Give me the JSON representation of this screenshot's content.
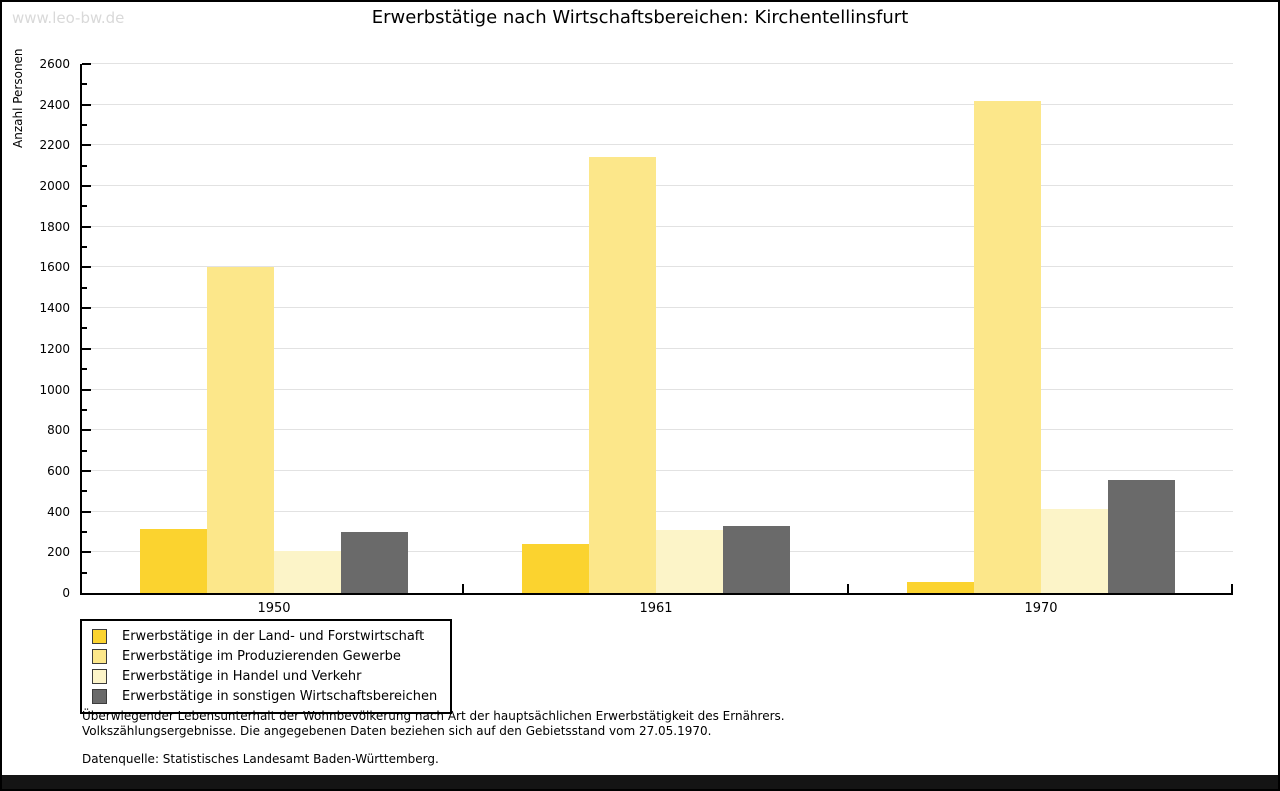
{
  "watermark": "www.leo-bw.de",
  "chart_data": {
    "type": "bar",
    "title": "Erwerbstätige nach Wirtschaftsbereichen: Kirchentellinsfurt",
    "ylabel": "Anzahl Personen",
    "xlabel": "",
    "categories": [
      "1950",
      "1961",
      "1970"
    ],
    "series": [
      {
        "name": "Erwerbstätige in der Land- und Forstwirtschaft",
        "color": "#fbd32f",
        "values": [
          315,
          240,
          55
        ]
      },
      {
        "name": "Erwerbstätige im Produzierenden Gewerbe",
        "color": "#fce78a",
        "values": [
          1600,
          2145,
          2420
        ]
      },
      {
        "name": "Erwerbstätige in Handel und Verkehr",
        "color": "#fcf4c8",
        "values": [
          205,
          310,
          415
        ]
      },
      {
        "name": "Erwerbstätige in sonstigen Wirtschaftsbereichen",
        "color": "#6a6a6a",
        "values": [
          300,
          330,
          555
        ]
      }
    ],
    "ylim": [
      0,
      2600
    ],
    "ytick_step": 200,
    "ytick_minor_step": 100,
    "grid": true,
    "legend_position": "bottom-left",
    "colors": {
      "gridline": "#e2e2e2",
      "axis": "#000000",
      "watermark": "#d9d9d9"
    }
  },
  "footnotes": [
    "Überwiegender Lebensunterhalt der Wohnbevölkerung nach Art der hauptsächlichen Erwerbstätigkeit des Ernährers.",
    "Volkszählungsergebnisse. Die angegebenen Daten beziehen sich auf den Gebietsstand vom 27.05.1970."
  ],
  "source": "Datenquelle: Statistisches Landesamt Baden-Württemberg."
}
